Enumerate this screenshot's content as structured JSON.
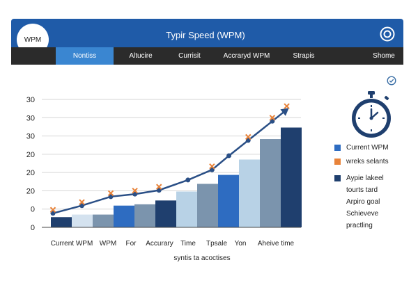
{
  "header": {
    "logo_text": "WPM",
    "title": "Typir Speed (WPM)"
  },
  "tabs": [
    {
      "label": "Nontiss",
      "active": true
    },
    {
      "label": "Altucire",
      "active": false
    },
    {
      "label": "Currisit",
      "active": false
    },
    {
      "label": "Accraryd WPM",
      "active": false
    },
    {
      "label": "Strapis",
      "active": false
    },
    {
      "label": "Shome",
      "active": false
    }
  ],
  "legend": [
    {
      "label": "Current WPM",
      "color": "#2e6cc1"
    },
    {
      "label": "wreks selants",
      "color": "#e8833a"
    }
  ],
  "notes": {
    "swatch_color": "#1f3f6e",
    "lines": [
      "Aypie lakeel",
      "tourts tard",
      "Arpiro goal",
      "Schieveve",
      "practling"
    ]
  },
  "colors": {
    "header": "#1f5ba8",
    "tabbar": "#2b2b2b",
    "tab_active": "#3a86d1",
    "line": "#2a4f86",
    "marker": "#e8833a"
  },
  "chart_data": {
    "type": "bar",
    "title": "",
    "xlabel": "syntis ta acoctises",
    "ylabel": "",
    "y_tick_labels": [
      "30",
      "30",
      "30",
      "20",
      "20",
      "20",
      "0",
      "0"
    ],
    "categories": [
      "Current WPM",
      "WPM",
      "For",
      "Accurary",
      "Time",
      "Tpsale",
      "Yon",
      "Aheive time"
    ],
    "ylim": [
      0,
      1
    ],
    "bars": [
      {
        "value": 0.08,
        "color": "#1f3f6e"
      },
      {
        "value": 0.1,
        "color": "#d4e2ef"
      },
      {
        "value": 0.1,
        "color": "#7b94ad"
      },
      {
        "value": 0.17,
        "color": "#2e6cc1"
      },
      {
        "value": 0.18,
        "color": "#7b94ad"
      },
      {
        "value": 0.21,
        "color": "#1f3f6e"
      },
      {
        "value": 0.28,
        "color": "#b8d2e6"
      },
      {
        "value": 0.34,
        "color": "#7b94ad"
      },
      {
        "value": 0.41,
        "color": "#2e6cc1"
      },
      {
        "value": 0.53,
        "color": "#b8d2e6"
      },
      {
        "value": 0.69,
        "color": "#7b94ad"
      },
      {
        "value": 0.78,
        "color": "#1f3f6e"
      }
    ],
    "line": {
      "points": [
        [
          0.0,
          0.11
        ],
        [
          0.12,
          0.17
        ],
        [
          0.24,
          0.24
        ],
        [
          0.34,
          0.26
        ],
        [
          0.44,
          0.29
        ],
        [
          0.56,
          0.37
        ],
        [
          0.66,
          0.45
        ],
        [
          0.73,
          0.56
        ],
        [
          0.81,
          0.68
        ],
        [
          0.91,
          0.83
        ],
        [
          0.97,
          0.92
        ]
      ],
      "marker_indices": [
        0,
        1,
        2,
        3,
        4,
        6,
        8,
        9,
        10
      ]
    },
    "grid": true,
    "legend_position": "right"
  }
}
